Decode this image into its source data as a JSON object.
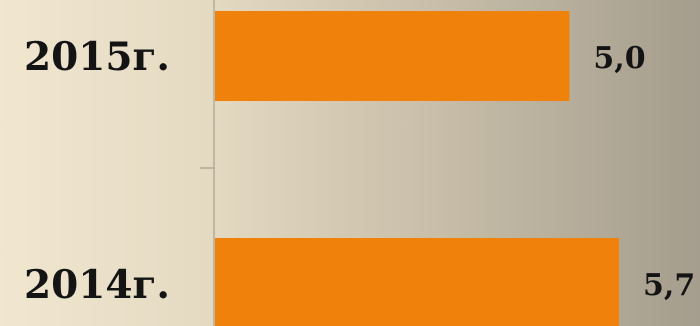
{
  "chart_data": {
    "type": "bar",
    "orientation": "horizontal",
    "categories": [
      "2015г.",
      "2014г."
    ],
    "values": [
      5.0,
      5.7
    ],
    "value_labels": [
      "5,0",
      "5,7"
    ],
    "bar_color": "#f0820b",
    "axis_color": "#9a9488",
    "label_color": "#141414",
    "grid": false,
    "legend": "none"
  }
}
